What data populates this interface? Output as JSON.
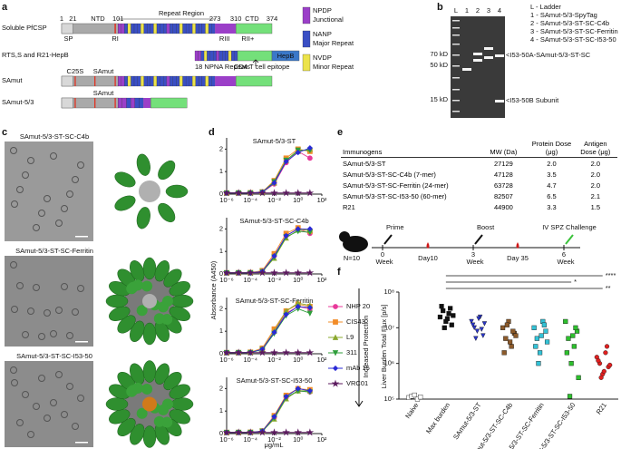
{
  "panel_labels": [
    "a",
    "b",
    "c",
    "d",
    "e",
    "f"
  ],
  "a": {
    "constructs": [
      "Soluble PfCSP",
      "RTS,S and R21-HepB",
      "SAmut",
      "SAmut-5/3"
    ],
    "regions": [
      "NTD",
      "Repeat Region",
      "CTD"
    ],
    "positions": [
      "1",
      "21",
      "101",
      "273",
      "310",
      "374"
    ],
    "sites": [
      "SP",
      "RI",
      "RIII",
      "RII+"
    ],
    "rts_labels": [
      "18 NPNA Repeats",
      "CD4 T cell epitope",
      "HepB"
    ],
    "mutations": [
      "C25S",
      "SAmut",
      "SAmut"
    ],
    "legend": [
      {
        "name": "NPDP",
        "desc": "Junctional",
        "color": "#9b3fc8"
      },
      {
        "name": "NANP",
        "desc": "Major Repeat",
        "color": "#3a4fc4"
      },
      {
        "name": "NVDP",
        "desc": "Minor Repeat",
        "color": "#ece34a"
      }
    ]
  },
  "b": {
    "lanes": [
      "L",
      "1",
      "2",
      "3",
      "4"
    ],
    "markers": [
      "70 kD",
      "50 kD",
      "15 kD"
    ],
    "bands": [
      "<I53-50A-SAmut-5/3-ST-SC",
      "<I53-50B Subunit"
    ],
    "key": [
      "L - Ladder",
      "1 - SAmut-5/3-SpyTag",
      "2 - SAmut-5/3-ST-SC-C4b",
      "3 - SAmut-5/3-ST-SC-Ferritin",
      "4 - SAmut-5/3-ST-SC-I53-50"
    ]
  },
  "c": {
    "titles": [
      "SAmut-5/3-ST-SC-C4b",
      "SAmut-5/3-ST-SC-Ferritin",
      "SAmut-5/3-ST-SC-I53-50"
    ]
  },
  "e": {
    "table": {
      "header": [
        "Immunogens",
        "MW (Da)",
        "Protein Dose (μg)",
        "Antigen Dose (μg)"
      ],
      "rows": [
        [
          "SAmut-5/3-ST",
          "27129",
          "2.0",
          "2.0"
        ],
        [
          "SAmut-5/3-ST-SC-C4b (7-mer)",
          "47128",
          "3.5",
          "2.0"
        ],
        [
          "SAmut-5/3-ST-SC-Ferritin (24-mer)",
          "63728",
          "4.7",
          "2.0"
        ],
        [
          "SAmut-5/3-ST-SC-I53-50 (60-mer)",
          "82507",
          "6.5",
          "2.1"
        ],
        [
          "R21",
          "44900",
          "3.3",
          "1.5"
        ]
      ]
    },
    "timeline": {
      "group": "N=10",
      "events": [
        "Prime",
        "Boost",
        "IV SPZ Challenge"
      ],
      "weeks": [
        "0",
        "3",
        "6"
      ],
      "unit": "Week",
      "bleeds": [
        "Day10",
        "Day 35"
      ]
    }
  },
  "chart_data": [
    {
      "type": "line",
      "title": "SAmut-5/3-ST",
      "ylabel": "Absorbance (A450)",
      "log_x": true,
      "x": [
        1e-06,
        1e-05,
        0.0001,
        0.001,
        0.01,
        0.1,
        1,
        10
      ],
      "xlim": [
        1e-06,
        100
      ],
      "xticks": [
        {
          "value": 1e-06,
          "label": "10⁻⁶"
        },
        {
          "value": 0.0001,
          "label": "10⁻⁴"
        },
        {
          "value": 0.01,
          "label": "10⁻²"
        },
        {
          "value": 1,
          "label": "10⁰"
        },
        {
          "value": 100,
          "label": "10²"
        }
      ],
      "ylim": [
        0,
        2.5
      ],
      "yticks": [
        0,
        1,
        2
      ],
      "series": [
        {
          "name": "NHP 20",
          "color": "#e8399a",
          "marker": "circle",
          "values": [
            0.05,
            0.05,
            0.05,
            0.08,
            0.45,
            1.4,
            1.9,
            1.6
          ]
        },
        {
          "name": "CIS43",
          "color": "#f28c28",
          "marker": "square",
          "values": [
            0.05,
            0.05,
            0.06,
            0.1,
            0.6,
            1.6,
            2.0,
            1.9
          ]
        },
        {
          "name": "L9",
          "color": "#8aa82e",
          "marker": "triangle",
          "values": [
            0.05,
            0.05,
            0.05,
            0.07,
            0.5,
            1.5,
            1.9,
            2.0
          ]
        },
        {
          "name": "311",
          "color": "#2f9e3a",
          "marker": "triangle-down",
          "values": [
            0.05,
            0.05,
            0.05,
            0.08,
            0.55,
            1.5,
            1.95,
            1.95
          ]
        },
        {
          "name": "mAb 15",
          "color": "#2a2ad6",
          "marker": "diamond",
          "values": [
            0.05,
            0.05,
            0.05,
            0.09,
            0.5,
            1.45,
            1.85,
            2.05
          ]
        },
        {
          "name": "VRC01",
          "color": "#5b1a5e",
          "marker": "star",
          "values": [
            0.05,
            0.05,
            0.05,
            0.05,
            0.05,
            0.05,
            0.05,
            0.05
          ]
        }
      ]
    },
    {
      "type": "line",
      "title": "SAmut-5/3-ST-SC-C4b",
      "log_x": true,
      "x": [
        1e-06,
        1e-05,
        0.0001,
        0.001,
        0.01,
        0.1,
        1,
        10
      ],
      "xlim": [
        1e-06,
        100
      ],
      "xticks": [
        {
          "value": 1e-06,
          "label": "10⁻⁶"
        },
        {
          "value": 0.0001,
          "label": "10⁻⁴"
        },
        {
          "value": 0.01,
          "label": "10⁻²"
        },
        {
          "value": 1,
          "label": "10⁰"
        },
        {
          "value": 100,
          "label": "10²"
        }
      ],
      "ylim": [
        0,
        2.5
      ],
      "yticks": [
        0,
        1,
        2
      ],
      "series": [
        {
          "values": [
            0.05,
            0.05,
            0.05,
            0.12,
            0.8,
            1.7,
            2.0,
            1.8
          ]
        },
        {
          "values": [
            0.05,
            0.05,
            0.06,
            0.15,
            0.9,
            1.8,
            2.05,
            1.9
          ]
        },
        {
          "values": [
            0.05,
            0.05,
            0.05,
            0.1,
            0.7,
            1.6,
            1.95,
            1.95
          ]
        },
        {
          "values": [
            0.05,
            0.05,
            0.05,
            0.1,
            0.75,
            1.65,
            1.9,
            1.85
          ]
        },
        {
          "values": [
            0.05,
            0.05,
            0.05,
            0.11,
            0.8,
            1.7,
            2.0,
            2.0
          ]
        },
        {
          "values": [
            0.05,
            0.05,
            0.05,
            0.05,
            0.05,
            0.05,
            0.05,
            0.05
          ]
        }
      ]
    },
    {
      "type": "line",
      "title": "SAmut-5/3-ST-SC-Ferritin",
      "log_x": true,
      "x": [
        1e-06,
        1e-05,
        0.0001,
        0.001,
        0.01,
        0.1,
        1,
        10
      ],
      "xlim": [
        1e-06,
        100
      ],
      "xticks": [
        {
          "value": 1e-06,
          "label": "10⁻⁶"
        },
        {
          "value": 0.0001,
          "label": "10⁻⁴"
        },
        {
          "value": 0.01,
          "label": "10⁻²"
        },
        {
          "value": 1,
          "label": "10⁰"
        },
        {
          "value": 100,
          "label": "10²"
        }
      ],
      "ylim": [
        0,
        2.5
      ],
      "yticks": [
        0,
        1,
        2
      ],
      "series": [
        {
          "values": [
            0.05,
            0.05,
            0.06,
            0.2,
            1.0,
            1.8,
            2.1,
            2.0
          ]
        },
        {
          "values": [
            0.05,
            0.05,
            0.07,
            0.25,
            1.1,
            1.9,
            2.2,
            2.1
          ]
        },
        {
          "values": [
            0.05,
            0.05,
            0.06,
            0.2,
            1.0,
            1.9,
            2.25,
            2.15
          ]
        },
        {
          "values": [
            0.05,
            0.05,
            0.05,
            0.18,
            0.9,
            1.7,
            2.0,
            1.8
          ]
        },
        {
          "values": [
            0.05,
            0.05,
            0.06,
            0.2,
            0.95,
            1.75,
            2.1,
            2.05
          ]
        },
        {
          "values": [
            0.05,
            0.05,
            0.05,
            0.05,
            0.05,
            0.05,
            0.05,
            0.05
          ]
        }
      ]
    },
    {
      "type": "line",
      "title": "SAmut-5/3-ST-SC-I53-50",
      "xlabel": "μg/mL",
      "log_x": true,
      "x": [
        1e-06,
        1e-05,
        0.0001,
        0.001,
        0.01,
        0.1,
        1,
        10
      ],
      "xlim": [
        1e-06,
        100
      ],
      "xticks": [
        {
          "value": 1e-06,
          "label": "10⁻⁶"
        },
        {
          "value": 0.0001,
          "label": "10⁻⁴"
        },
        {
          "value": 0.01,
          "label": "10⁻²"
        },
        {
          "value": 1,
          "label": "10⁰"
        },
        {
          "value": 100,
          "label": "10²"
        }
      ],
      "ylim": [
        0,
        2.5
      ],
      "yticks": [
        0,
        1,
        2
      ],
      "series": [
        {
          "values": [
            0.05,
            0.05,
            0.05,
            0.1,
            0.7,
            1.6,
            1.9,
            1.85
          ]
        },
        {
          "values": [
            0.05,
            0.05,
            0.06,
            0.12,
            0.8,
            1.7,
            2.0,
            1.95
          ]
        },
        {
          "values": [
            0.05,
            0.05,
            0.05,
            0.1,
            0.65,
            1.55,
            1.9,
            1.9
          ]
        },
        {
          "values": [
            0.05,
            0.05,
            0.05,
            0.1,
            0.7,
            1.6,
            1.9,
            1.85
          ]
        },
        {
          "values": [
            0.05,
            0.05,
            0.05,
            0.11,
            0.75,
            1.65,
            2.0,
            1.9
          ]
        },
        {
          "values": [
            0.05,
            0.05,
            0.05,
            0.05,
            0.05,
            0.05,
            0.05,
            0.05
          ]
        }
      ]
    },
    {
      "type": "strip",
      "ylabel": "Liver Burden Total Flux [p/s]",
      "annotation": "Increased Protection",
      "log_y": true,
      "categories": [
        "Naive",
        "Max burden",
        "SAmut-5/3-ST",
        "SAmut-5/3-ST-SC-C4b",
        "SAmut-5/3-ST-SC-Ferritin",
        "SAmut-5/3-ST-SC-I53-50",
        "R21"
      ],
      "colors": [
        "#ffffff",
        "#111111",
        "#2a36c8",
        "#8b5a2b",
        "#33c2d6",
        "#2ec02e",
        "#e02020"
      ],
      "ylim": [
        100000,
        100000000
      ],
      "yticks": [
        {
          "value": 100000,
          "label": "10⁵"
        },
        {
          "value": 1000000,
          "label": "10⁶"
        },
        {
          "value": 10000000,
          "label": "10⁷"
        },
        {
          "value": 100000000,
          "label": "10⁸"
        }
      ],
      "values": [
        [
          110000,
          120000,
          130000,
          100000,
          115000
        ],
        [
          20000000,
          30000000,
          15000000,
          25000000,
          12000000,
          40000000,
          10000000,
          18000000,
          35000000,
          22000000
        ],
        [
          15000000,
          10000000,
          8000000,
          20000000,
          6000000,
          12000000,
          5000000,
          18000000,
          9000000,
          13000000
        ],
        [
          10000000,
          5000000,
          15000000,
          3000000,
          7000000,
          2000000,
          12000000,
          4000000,
          8000000,
          6000000
        ],
        [
          10000000,
          5000000,
          2000000,
          15000000,
          8000000,
          3000000,
          1000000,
          6000000,
          12000000,
          4000000
        ],
        [
          15000000,
          5000000,
          1000000,
          3000000,
          8000000,
          2000000,
          120000,
          6000000,
          10000000,
          400000
        ],
        [
          1500000,
          1000000,
          500000,
          2000000,
          800000,
          1200000,
          400000,
          600000,
          3000000,
          900000
        ]
      ],
      "significance": [
        "****",
        "*",
        "**"
      ]
    }
  ]
}
